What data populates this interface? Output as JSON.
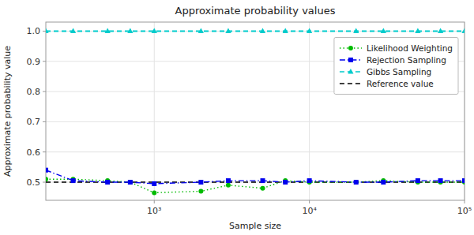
{
  "chart_data": {
    "type": "line",
    "title": "Approximate probability values",
    "xlabel": "Sample size",
    "ylabel": "Approximate probability value",
    "x": [
      200,
      300,
      500,
      700,
      1000,
      2000,
      3000,
      5000,
      7000,
      10000,
      20000,
      30000,
      50000,
      70000,
      100000
    ],
    "series": [
      {
        "name": "Likelihood Weighting",
        "color": "#00bb00",
        "marker": "circle",
        "line_style": "dotted",
        "values": [
          0.51,
          0.51,
          0.505,
          0.5,
          0.465,
          0.47,
          0.49,
          0.48,
          0.505,
          0.5,
          0.5,
          0.505,
          0.5,
          0.5,
          0.5
        ]
      },
      {
        "name": "Rejection Sampling",
        "color": "#0000ee",
        "marker": "square",
        "line_style": "dashdot",
        "values": [
          0.54,
          0.505,
          0.5,
          0.5,
          0.495,
          0.5,
          0.505,
          0.505,
          0.5,
          0.505,
          0.5,
          0.5,
          0.505,
          0.505,
          0.505
        ]
      },
      {
        "name": "Gibbs Sampling",
        "color": "#00cccc",
        "marker": "triangle",
        "line_style": "dashed",
        "values": [
          1.0,
          1.0,
          1.0,
          1.0,
          1.0,
          1.0,
          1.0,
          1.0,
          1.0,
          1.0,
          1.0,
          1.0,
          1.0,
          1.0,
          1.0
        ]
      }
    ],
    "reference_lines": [
      {
        "name": "Reference value",
        "value": 0.5,
        "color": "#000000",
        "line_style": "dashed"
      }
    ],
    "log": "x",
    "xlim": [
      200,
      100000
    ],
    "xticks": [
      {
        "value": 1000,
        "label": "10³"
      },
      {
        "value": 10000,
        "label": "10⁴"
      },
      {
        "value": 100000,
        "label": "10⁵"
      }
    ],
    "ylim": [
      0.44,
      1.03
    ],
    "yticks": [
      0.5,
      0.6,
      0.7,
      0.8,
      0.9,
      {
        "value": 1.0,
        "label": "1.0"
      }
    ],
    "grid": true,
    "legend": "upper right"
  }
}
